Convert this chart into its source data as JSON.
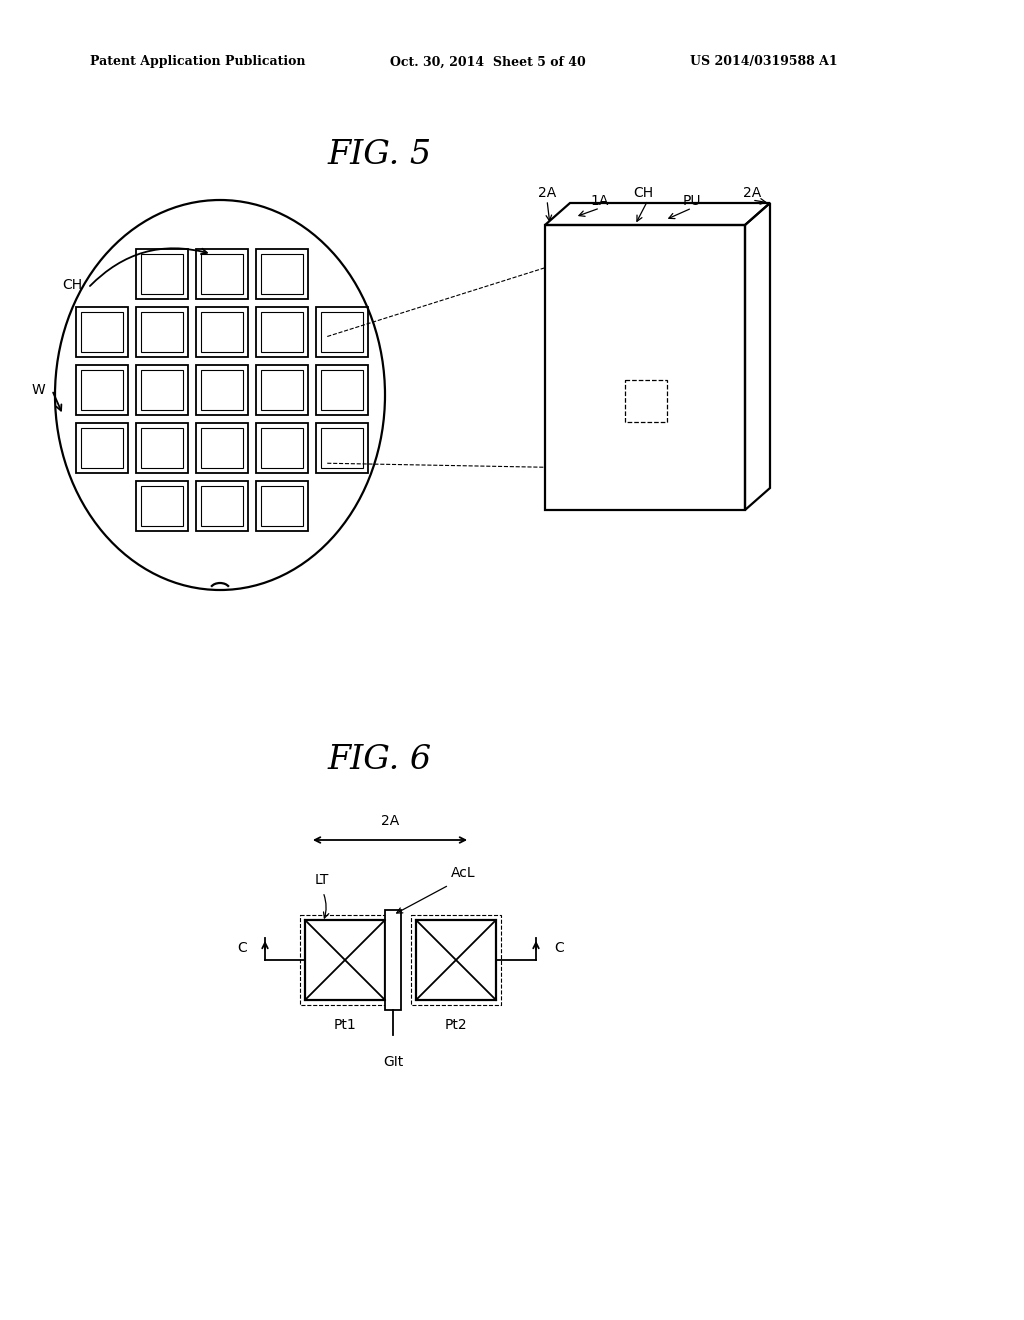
{
  "bg_color": "#ffffff",
  "text_color": "#000000",
  "header_left": "Patent Application Publication",
  "header_mid": "Oct. 30, 2014  Sheet 5 of 40",
  "header_right": "US 2014/0319588 A1",
  "fig5_title": "FIG. 5",
  "fig6_title": "FIG. 6",
  "lc": "#000000",
  "lw": 1.3
}
